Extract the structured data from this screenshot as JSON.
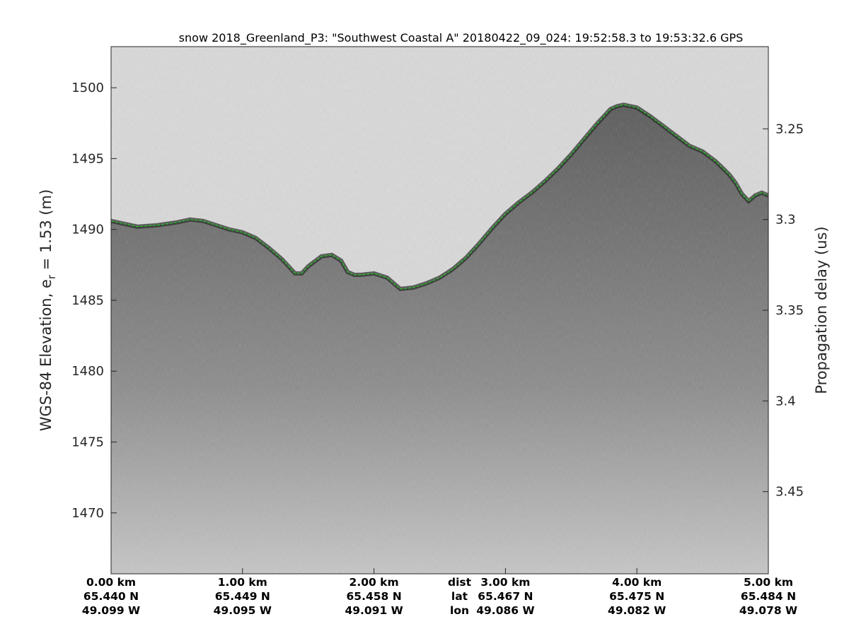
{
  "chart_data": {
    "type": "radargram",
    "title": "snow 2018_Greenland_P3: \"Southwest Coastal A\"  20180422_09_024: 19:52:58.3 to 19:53:32.6 GPS",
    "ylabel_left_main": "WGS-84 Elevation, e",
    "ylabel_left_sub": "r",
    "ylabel_left_tail": " = 1.53 (m)",
    "ylabel_right": "Propagation delay (us)",
    "ylim": [
      1465.7,
      1502.9
    ],
    "xlim": [
      0,
      5
    ],
    "yticks_left": [
      1470,
      1475,
      1480,
      1485,
      1490,
      1495,
      1500
    ],
    "yticks_right": [
      3.25,
      3.3,
      3.35,
      3.4,
      3.45
    ],
    "right_axis_elev_at_delay": [
      [
        3.25,
        1497.1
      ],
      [
        3.45,
        1471.5
      ]
    ],
    "x_ticks": [
      {
        "x": 0,
        "dist": "0.00 km",
        "lat": "65.440 N",
        "lon": "49.099 W"
      },
      {
        "x": 1,
        "dist": "1.00 km",
        "lat": "65.449 N",
        "lon": "49.095 W"
      },
      {
        "x": 2,
        "dist": "2.00 km",
        "lat": "65.458 N",
        "lon": "49.091 W"
      },
      {
        "x": 3,
        "dist": "3.00 km",
        "lat": "65.467 N",
        "lon": "49.086 W"
      },
      {
        "x": 4,
        "dist": "4.00 km",
        "lat": "65.475 N",
        "lon": "49.082 W"
      },
      {
        "x": 5,
        "dist": "5.00 km",
        "lat": "65.484 N",
        "lon": "49.078 W"
      }
    ],
    "row_labels": [
      "dist",
      "lat",
      "lon"
    ],
    "row_labels_x": 2.5,
    "surface_line": {
      "color": "#22cc22",
      "x": [
        0,
        0.1,
        0.2,
        0.35,
        0.5,
        0.6,
        0.7,
        0.8,
        0.9,
        1.0,
        1.1,
        1.2,
        1.3,
        1.4,
        1.45,
        1.5,
        1.6,
        1.68,
        1.75,
        1.8,
        1.85,
        1.9,
        2.0,
        2.1,
        2.15,
        2.2,
        2.3,
        2.4,
        2.5,
        2.6,
        2.7,
        2.8,
        2.9,
        3.0,
        3.1,
        3.2,
        3.3,
        3.4,
        3.5,
        3.6,
        3.7,
        3.75,
        3.8,
        3.85,
        3.9,
        4.0,
        4.1,
        4.2,
        4.3,
        4.4,
        4.5,
        4.6,
        4.7,
        4.75,
        4.8,
        4.85,
        4.9,
        4.95,
        5.0
      ],
      "y": [
        1490.6,
        1490.4,
        1490.2,
        1490.3,
        1490.5,
        1490.7,
        1490.6,
        1490.3,
        1490.0,
        1489.8,
        1489.4,
        1488.7,
        1487.9,
        1486.9,
        1486.9,
        1487.4,
        1488.1,
        1488.2,
        1487.8,
        1487.0,
        1486.8,
        1486.8,
        1486.9,
        1486.6,
        1486.2,
        1485.8,
        1485.9,
        1486.2,
        1486.6,
        1487.2,
        1488.0,
        1489.0,
        1490.1,
        1491.1,
        1491.9,
        1492.6,
        1493.4,
        1494.3,
        1495.3,
        1496.4,
        1497.5,
        1498.0,
        1498.5,
        1498.7,
        1498.8,
        1498.6,
        1498.0,
        1497.3,
        1496.6,
        1495.9,
        1495.5,
        1494.8,
        1493.9,
        1493.3,
        1492.5,
        1492.0,
        1492.4,
        1492.6,
        1492.4
      ]
    }
  }
}
